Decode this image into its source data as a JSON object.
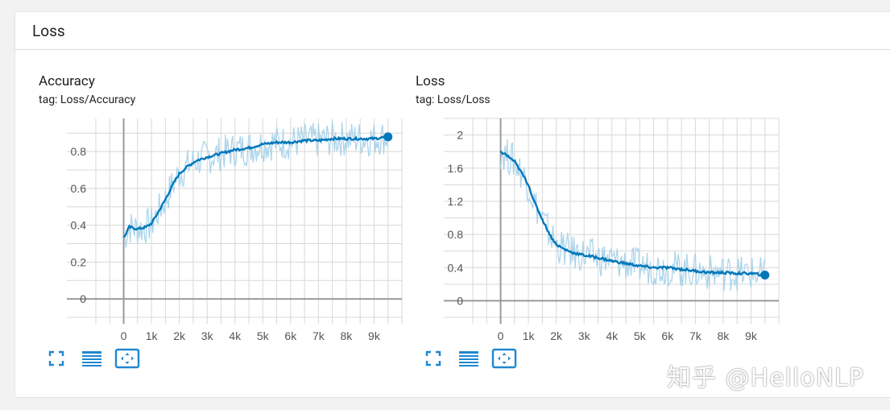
{
  "section": {
    "title": "Loss"
  },
  "charts": [
    {
      "title": "Accuracy",
      "tag": "tag: Loss/Accuracy",
      "controls": [
        "fullscreen-icon",
        "toggle-log-scale-icon",
        "fit-domain-icon"
      ],
      "chart_data": {
        "type": "line",
        "x": [
          0,
          200,
          500,
          800,
          1000,
          1200,
          1500,
          1800,
          2000,
          2300,
          2600,
          3000,
          3500,
          4000,
          4500,
          5000,
          5500,
          6000,
          6500,
          7000,
          7500,
          8000,
          8500,
          9000,
          9500
        ],
        "series": [
          {
            "values": [
              0.33,
              0.39,
              0.38,
              0.39,
              0.41,
              0.46,
              0.54,
              0.63,
              0.68,
              0.72,
              0.75,
              0.77,
              0.79,
              0.81,
              0.82,
              0.84,
              0.85,
              0.85,
              0.86,
              0.86,
              0.87,
              0.87,
              0.87,
              0.87,
              0.88
            ]
          }
        ],
        "x_ticks": [
          "0",
          "1k",
          "2k",
          "3k",
          "4k",
          "5k",
          "6k",
          "7k",
          "8k",
          "9k"
        ],
        "y_ticks": [
          "0",
          "0.2",
          "0.4",
          "0.6",
          "0.8"
        ],
        "xlim": [
          -1000,
          10000
        ],
        "ylim": [
          -0.1,
          0.98
        ],
        "grid": true,
        "line_color": "#0077bb",
        "raw_color": "#a8d3ea"
      }
    },
    {
      "title": "Loss",
      "tag": "tag: Loss/Loss",
      "controls": [
        "fullscreen-icon",
        "toggle-log-scale-icon",
        "fit-domain-icon"
      ],
      "chart_data": {
        "type": "line",
        "x": [
          0,
          200,
          500,
          800,
          1000,
          1200,
          1500,
          1800,
          2000,
          2300,
          2600,
          3000,
          3500,
          4000,
          4500,
          5000,
          5500,
          6000,
          6500,
          7000,
          7500,
          8000,
          8500,
          9000,
          9500
        ],
        "series": [
          {
            "values": [
              1.8,
              1.76,
              1.68,
              1.52,
              1.4,
              1.2,
              0.98,
              0.78,
              0.68,
              0.62,
              0.58,
              0.55,
              0.52,
              0.48,
              0.45,
              0.42,
              0.4,
              0.4,
              0.38,
              0.36,
              0.34,
              0.34,
              0.33,
              0.33,
              0.31
            ]
          }
        ],
        "x_ticks": [
          "0",
          "1k",
          "2k",
          "3k",
          "4k",
          "5k",
          "6k",
          "7k",
          "8k",
          "9k"
        ],
        "y_ticks": [
          "0",
          "0.4",
          "0.8",
          "1.2",
          "1.6",
          "2"
        ],
        "xlim": [
          -1000,
          10000
        ],
        "ylim": [
          -0.2,
          2.2
        ],
        "grid": true,
        "line_color": "#0077bb",
        "raw_color": "#a8d3ea"
      }
    }
  ],
  "watermark": "知乎 @HelloNLP"
}
